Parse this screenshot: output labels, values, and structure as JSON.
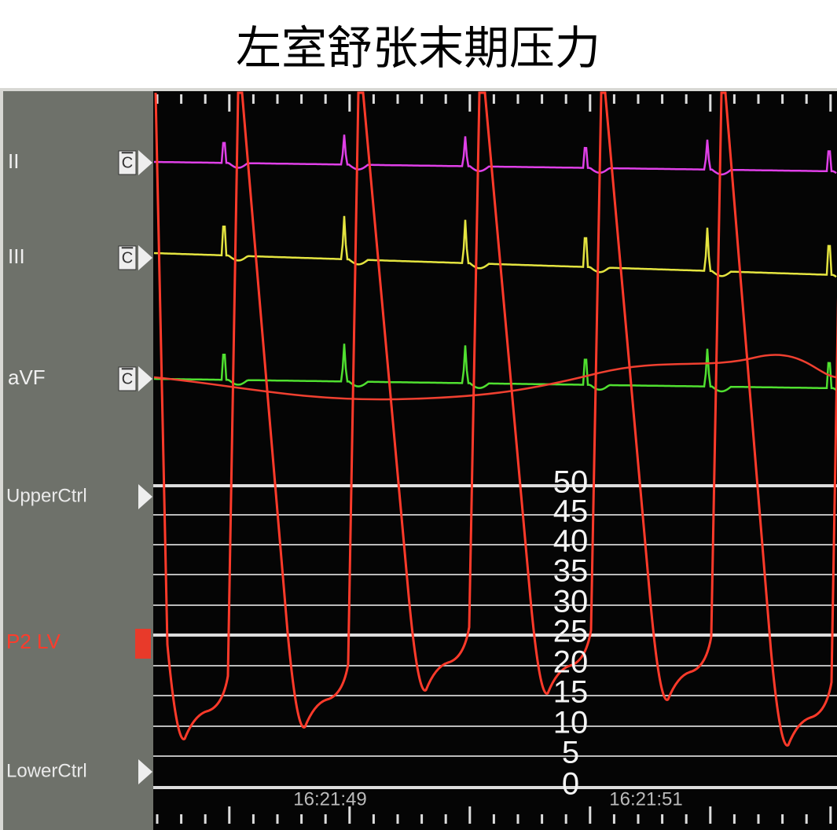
{
  "title": "左室舒张末期压力",
  "channels": [
    {
      "label": "II"
    },
    {
      "label": "III"
    },
    {
      "label": "aVF"
    }
  ],
  "button_label": "C",
  "upper_ctrl": "UpperCtrl",
  "pressure_channel": "P2 LV",
  "lower_ctrl": "LowerCtrl",
  "scale": [
    50,
    45,
    40,
    35,
    30,
    25,
    20,
    15,
    10,
    5,
    0
  ],
  "times": [
    "16:21:49",
    "16:21:51"
  ]
}
